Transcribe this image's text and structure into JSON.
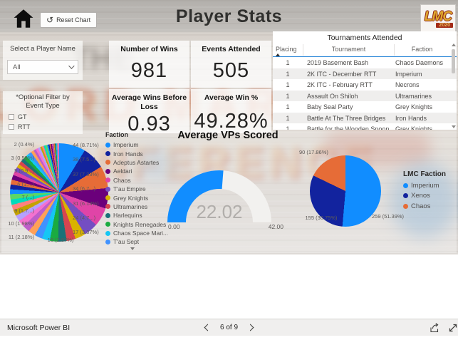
{
  "header": {
    "title": "Player Stats",
    "reset_label": "Reset Chart",
    "logo": {
      "text": "LMC",
      "year": "2020"
    }
  },
  "filters": {
    "player": {
      "label": "Select a Player Name",
      "value": "All"
    },
    "event_type": {
      "label_line1": "*Optional Filter by",
      "label_line2": "Event Type",
      "options": [
        "GT",
        "RTT"
      ]
    }
  },
  "kpis": [
    {
      "title": "Number of Wins",
      "value": "981"
    },
    {
      "title": "Events Attended",
      "value": "505"
    },
    {
      "title": "Average Wins Before Loss",
      "value": "0.93"
    },
    {
      "title": "Average Win %",
      "value": "49.28%"
    }
  ],
  "table": {
    "title": "Tournaments Attended",
    "columns": [
      "Placing",
      "Tournament",
      "Faction"
    ],
    "sort": {
      "column": "Placing",
      "direction": "asc"
    },
    "rows": [
      [
        "1",
        "2019 Basement Bash",
        "Chaos Daemons"
      ],
      [
        "1",
        "2K ITC - December RTT",
        "Imperium"
      ],
      [
        "1",
        "2K ITC - February RTT",
        "Necrons"
      ],
      [
        "1",
        "Assault On Shiloh",
        "Ultramarines"
      ],
      [
        "1",
        "Baby Seal Party",
        "Grey Knights"
      ],
      [
        "1",
        "Battle At The Three Bridges",
        "Iron Hands"
      ],
      [
        "1",
        "Battle for the Wooden Spoon - December",
        "Grey Knights"
      ]
    ]
  },
  "chart_data": [
    {
      "type": "pie",
      "name": "events-by-faction",
      "legend_title": "Faction",
      "legend_position": "right",
      "total": 505,
      "values": [
        44,
        38,
        37,
        34,
        31,
        24,
        17,
        15,
        14,
        14,
        13,
        13,
        12,
        12,
        11,
        10,
        10,
        9,
        9,
        9,
        8,
        8,
        8,
        8,
        7,
        7,
        6,
        6,
        6,
        6,
        5,
        5,
        5,
        4,
        4,
        4,
        3,
        3,
        3,
        3,
        2,
        2,
        2,
        2,
        2,
        1,
        1,
        1,
        1,
        1,
        1,
        1,
        1,
        1,
        1
      ],
      "palette": [
        "#118DFF",
        "#12239E",
        "#E66C37",
        "#6B007B",
        "#E044A7",
        "#744EC2",
        "#D9B300",
        "#D64550",
        "#197278",
        "#1AAB40",
        "#15C6F4",
        "#4092FF",
        "#FFA058",
        "#BE5DC9",
        "#F472D0",
        "#B5A1FF",
        "#C4A200",
        "#FF8080",
        "#00DBBC",
        "#5BD667"
      ],
      "legend": [
        {
          "label": "Imperium",
          "color": "#118DFF"
        },
        {
          "label": "Iron Hands",
          "color": "#12239E"
        },
        {
          "label": "Adeptus Astartes",
          "color": "#E66C37"
        },
        {
          "label": "Aeldari",
          "color": "#6B007B"
        },
        {
          "label": "Chaos",
          "color": "#E044A7"
        },
        {
          "label": "T'au Empire",
          "color": "#744EC2"
        },
        {
          "label": "Grey Knights",
          "color": "#D9B300"
        },
        {
          "label": "Ultramarines",
          "color": "#D64550"
        },
        {
          "label": "Harlequins",
          "color": "#197278"
        },
        {
          "label": "Knights Renegades",
          "color": "#1AAB40"
        },
        {
          "label": "Chaos Space Mari...",
          "color": "#15C6F4"
        },
        {
          "label": "T'au Sept",
          "color": "#4092FF"
        }
      ],
      "callout_labels_right": [
        "44 (8.71%)",
        "38 (7.5...)",
        "37 (7.33%)",
        "34 (6.7...)",
        "31 (6.14%)",
        "24 (4.7...)",
        "17 (3.37%)"
      ],
      "callout_labels_left": [
        "2 (0.4%)",
        "3 (0.59%)",
        "5 (0.9...)",
        "6 (1....)",
        "7 (...)",
        "9 (1.7...)",
        "10 (1.98%)",
        "11 (2.18%)"
      ],
      "callout_label_bottom": "15 (2.97%)"
    },
    {
      "type": "gauge",
      "name": "average-vps-scored",
      "title": "Average VPs Scored",
      "value": 22.02,
      "display_value": "22.02",
      "min": 0,
      "max": 42,
      "min_label": "0.00",
      "max_label": "42.00",
      "fill_color": "#118DFF",
      "track_color": "#f2f1ef"
    },
    {
      "type": "pie",
      "name": "events-by-lmc-faction",
      "legend_title": "LMC Faction",
      "legend_position": "right",
      "total": 504,
      "slices": [
        {
          "label": "Imperium",
          "value": 259,
          "display": "259 (51.39%)",
          "color": "#118DFF"
        },
        {
          "label": "Xenos",
          "value": 155,
          "display": "155 (30.75%)",
          "color": "#12239E"
        },
        {
          "label": "Chaos",
          "value": 90,
          "display": "90 (17.86%)",
          "color": "#E66C37"
        }
      ]
    }
  ],
  "footer": {
    "brand": "Microsoft Power BI",
    "page_indicator": "6 of 9"
  },
  "colors": {
    "accent": "#118DFF",
    "table_header_line": "#2c88d8"
  }
}
